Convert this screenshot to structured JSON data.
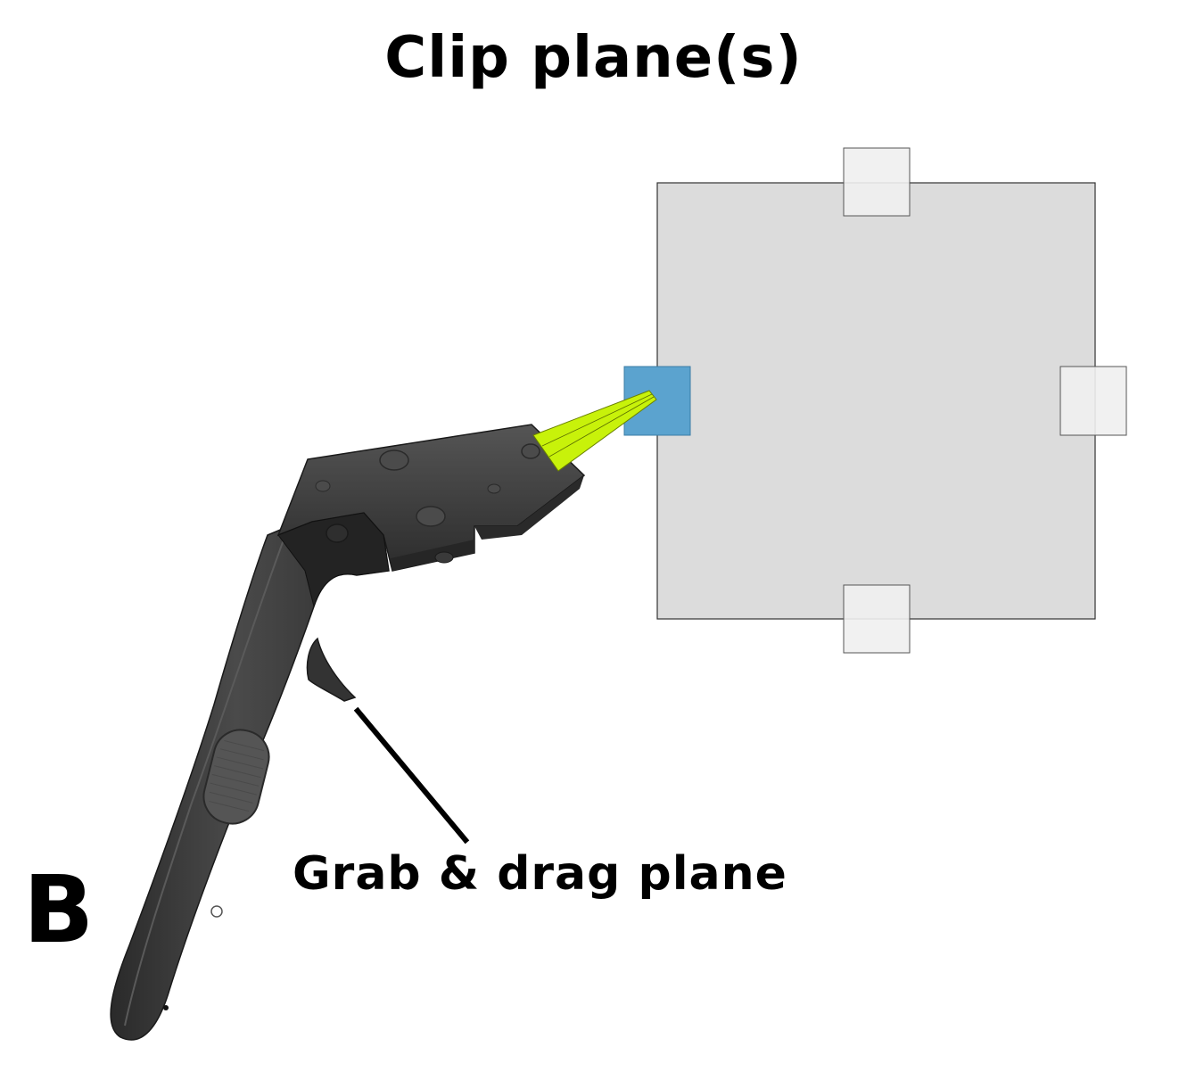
{
  "figure": {
    "title": "Clip plane(s)",
    "panel_label": "B",
    "callout_label": "Grab & drag plane"
  },
  "colors": {
    "plane_fill": "#dcdcdc",
    "plane_stroke": "#333333",
    "handle_fill": "#f0f0f0",
    "handle_active_fill": "#5ba3cf",
    "laser_beam": "#c8f20a",
    "controller_body": "#3a3a3a",
    "controller_dark": "#222222"
  }
}
